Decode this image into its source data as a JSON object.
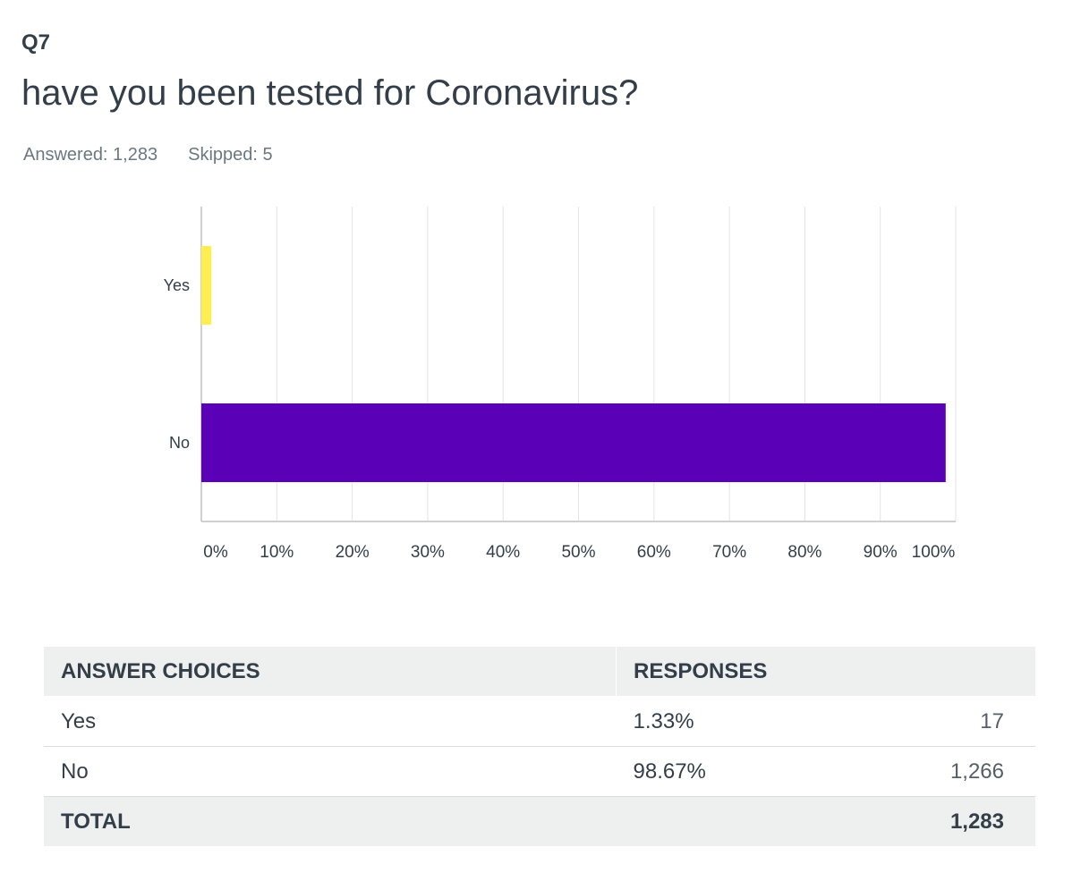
{
  "question": {
    "number": "Q7",
    "title": "have you been tested for Coronavirus?",
    "answered": "Answered: 1,283",
    "skipped": "Skipped: 5"
  },
  "colors": {
    "yes": "#ffee4f",
    "no": "#5a00b6",
    "grid": "#e3e3e3",
    "axis": "#d0d0d0"
  },
  "chart_data": {
    "type": "bar",
    "orientation": "horizontal",
    "categories": [
      "Yes",
      "No"
    ],
    "values": [
      1.33,
      98.67
    ],
    "xlim": [
      0,
      100
    ],
    "xticks": [
      0,
      10,
      20,
      30,
      40,
      50,
      60,
      70,
      80,
      90,
      100
    ],
    "xtick_labels": [
      "0%",
      "10%",
      "20%",
      "30%",
      "40%",
      "50%",
      "60%",
      "70%",
      "80%",
      "90%",
      "100%"
    ],
    "grid": true,
    "legend": "none"
  },
  "table": {
    "headers": [
      "ANSWER CHOICES",
      "RESPONSES"
    ],
    "rows": [
      {
        "choice": "Yes",
        "percent": "1.33%",
        "count": "17"
      },
      {
        "choice": "No",
        "percent": "98.67%",
        "count": "1,266"
      }
    ],
    "total": {
      "label": "TOTAL",
      "count": "1,283"
    }
  }
}
